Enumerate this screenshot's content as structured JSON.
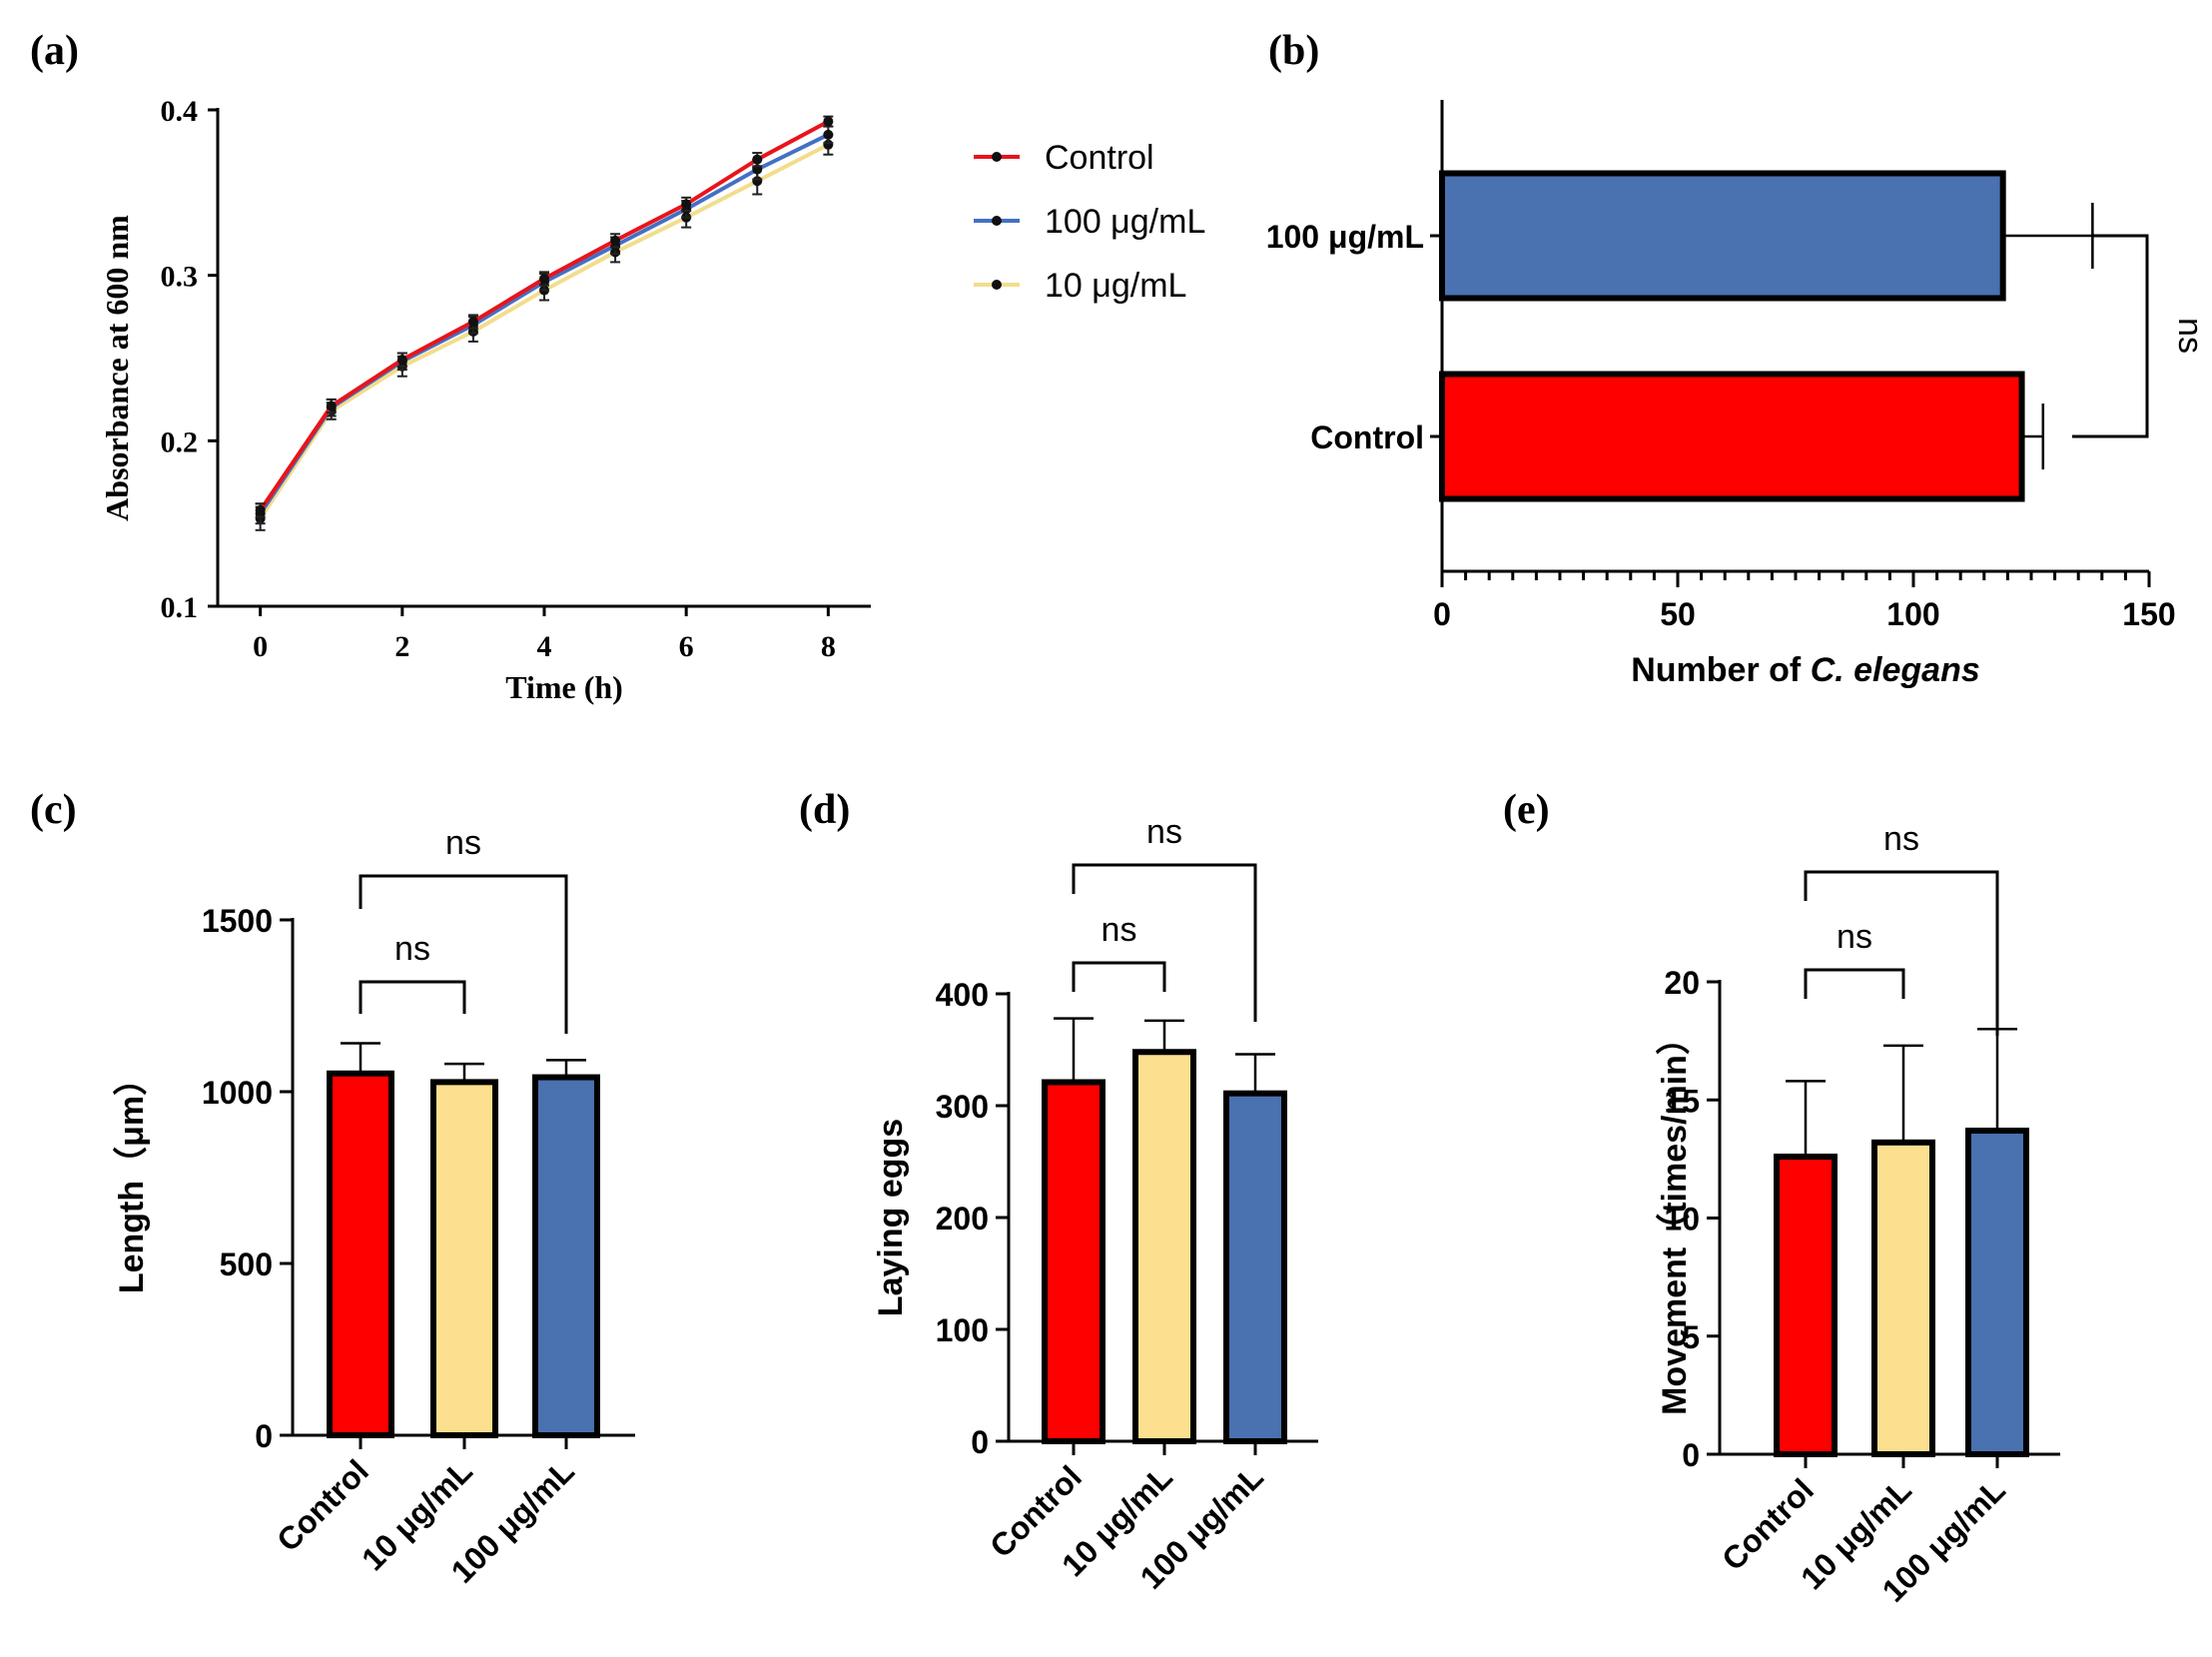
{
  "colors": {
    "red": "#ff0000",
    "blue": "#4a71b0",
    "yellow": "#fde08f",
    "axis": "#000000",
    "line_red": "#e8141b",
    "line_blue": "#4470c4",
    "line_yellow": "#f2dd8c"
  },
  "panels": {
    "a": {
      "label": "(a)"
    },
    "b": {
      "label": "(b)"
    },
    "c": {
      "label": "(c)"
    },
    "d": {
      "label": "(d)"
    },
    "e": {
      "label": "(e)"
    }
  },
  "chart_data": [
    {
      "id": "a",
      "type": "line",
      "title": "",
      "xlabel": "Time (h)",
      "ylabel": "Absorbance at 600 nm",
      "xlim": [
        -0.6,
        8.6
      ],
      "ylim": [
        0.1,
        0.4
      ],
      "xticks": [
        0,
        2,
        4,
        6,
        8
      ],
      "xtick_labels": [
        "0",
        "2",
        "4",
        "6",
        "8"
      ],
      "yticks": [
        0.1,
        0.2,
        0.3,
        0.4
      ],
      "ytick_labels": [
        "0.1",
        "0.2",
        "0.3",
        "0.4"
      ],
      "legend_position": "right",
      "x": [
        0,
        1,
        2,
        3,
        4,
        5,
        6,
        7,
        8
      ],
      "series": [
        {
          "name": "Control",
          "color": "#e8141b",
          "values": [
            0.158,
            0.221,
            0.249,
            0.272,
            0.298,
            0.321,
            0.343,
            0.37,
            0.393
          ],
          "errors": [
            0.004,
            0.004,
            0.004,
            0.004,
            0.004,
            0.004,
            0.004,
            0.004,
            0.003
          ]
        },
        {
          "name": "100 μg/mL",
          "color": "#4470c4",
          "values": [
            0.156,
            0.22,
            0.248,
            0.27,
            0.296,
            0.318,
            0.34,
            0.364,
            0.385
          ],
          "errors": [
            0.006,
            0.005,
            0.005,
            0.005,
            0.005,
            0.005,
            0.005,
            0.006,
            0.005
          ]
        },
        {
          "name": "10 μg/mL",
          "color": "#f2dd8c",
          "values": [
            0.153,
            0.218,
            0.245,
            0.266,
            0.291,
            0.314,
            0.335,
            0.357,
            0.379
          ],
          "errors": [
            0.007,
            0.005,
            0.006,
            0.006,
            0.006,
            0.006,
            0.006,
            0.008,
            0.006
          ]
        }
      ]
    },
    {
      "id": "b",
      "type": "bar",
      "orientation": "horizontal",
      "xlabel_prefix": "Number of ",
      "xlabel_italic": "C. elegans",
      "xlim": [
        0,
        150
      ],
      "xticks": [
        0,
        50,
        100,
        150
      ],
      "xtick_labels": [
        "0",
        "50",
        "100",
        "150"
      ],
      "categories": [
        "100 μg/mL",
        "Control"
      ],
      "values": [
        119,
        123
      ],
      "errors": [
        19,
        4.5
      ],
      "colors": [
        "#4a71b0",
        "#ff0000"
      ],
      "significance": "ns"
    },
    {
      "id": "c",
      "type": "bar",
      "ylabel": "Length（μm）",
      "ylim": [
        0,
        1500
      ],
      "yticks": [
        0,
        500,
        1000,
        1500
      ],
      "ytick_labels": [
        "0",
        "500",
        "1000",
        "1500"
      ],
      "categories": [
        "Control",
        "10 μg/mL",
        "100 μg/mL"
      ],
      "values": [
        1053,
        1028,
        1042
      ],
      "errors": [
        88,
        53,
        50
      ],
      "colors": [
        "#ff0000",
        "#fde08f",
        "#4a71b0"
      ],
      "significance": [
        {
          "from": 0,
          "to": 1,
          "label": "ns",
          "y": 1320,
          "drop_from": 1320,
          "drop_to": 1320
        },
        {
          "from": 0,
          "to": 2,
          "label": "ns",
          "y": 1635
        }
      ]
    },
    {
      "id": "d",
      "type": "bar",
      "ylabel": "Laying eggs",
      "ylim": [
        0,
        400
      ],
      "yticks": [
        0,
        100,
        200,
        300,
        400
      ],
      "ytick_labels": [
        "0",
        "100",
        "200",
        "300",
        "400"
      ],
      "categories": [
        "Control",
        "10 μg/mL",
        "100 μg/mL"
      ],
      "values": [
        321,
        348,
        311
      ],
      "errors": [
        57,
        28,
        35
      ],
      "colors": [
        "#ff0000",
        "#fde08f",
        "#4a71b0"
      ],
      "significance": [
        {
          "from": 0,
          "to": 1,
          "label": "ns",
          "y": 425
        },
        {
          "from": 0,
          "to": 2,
          "label": "ns",
          "y": 510
        }
      ]
    },
    {
      "id": "e",
      "type": "bar",
      "ylabel": "Movement（times/min）",
      "ylim": [
        0,
        20
      ],
      "yticks": [
        0,
        5,
        10,
        15,
        20
      ],
      "ytick_labels": [
        "0",
        "5",
        "10",
        "15",
        "20"
      ],
      "categories": [
        "Control",
        "10 μg/mL",
        "100 μg/mL"
      ],
      "values": [
        12.6,
        13.2,
        13.7
      ],
      "errors": [
        3.2,
        4.1,
        4.3
      ],
      "colors": [
        "#ff0000",
        "#fde08f",
        "#4a71b0"
      ],
      "significance": [
        {
          "from": 0,
          "to": 1,
          "label": "ns",
          "y": 20.3
        },
        {
          "from": 0,
          "to": 2,
          "label": "ns",
          "y": 24.5
        }
      ]
    }
  ]
}
